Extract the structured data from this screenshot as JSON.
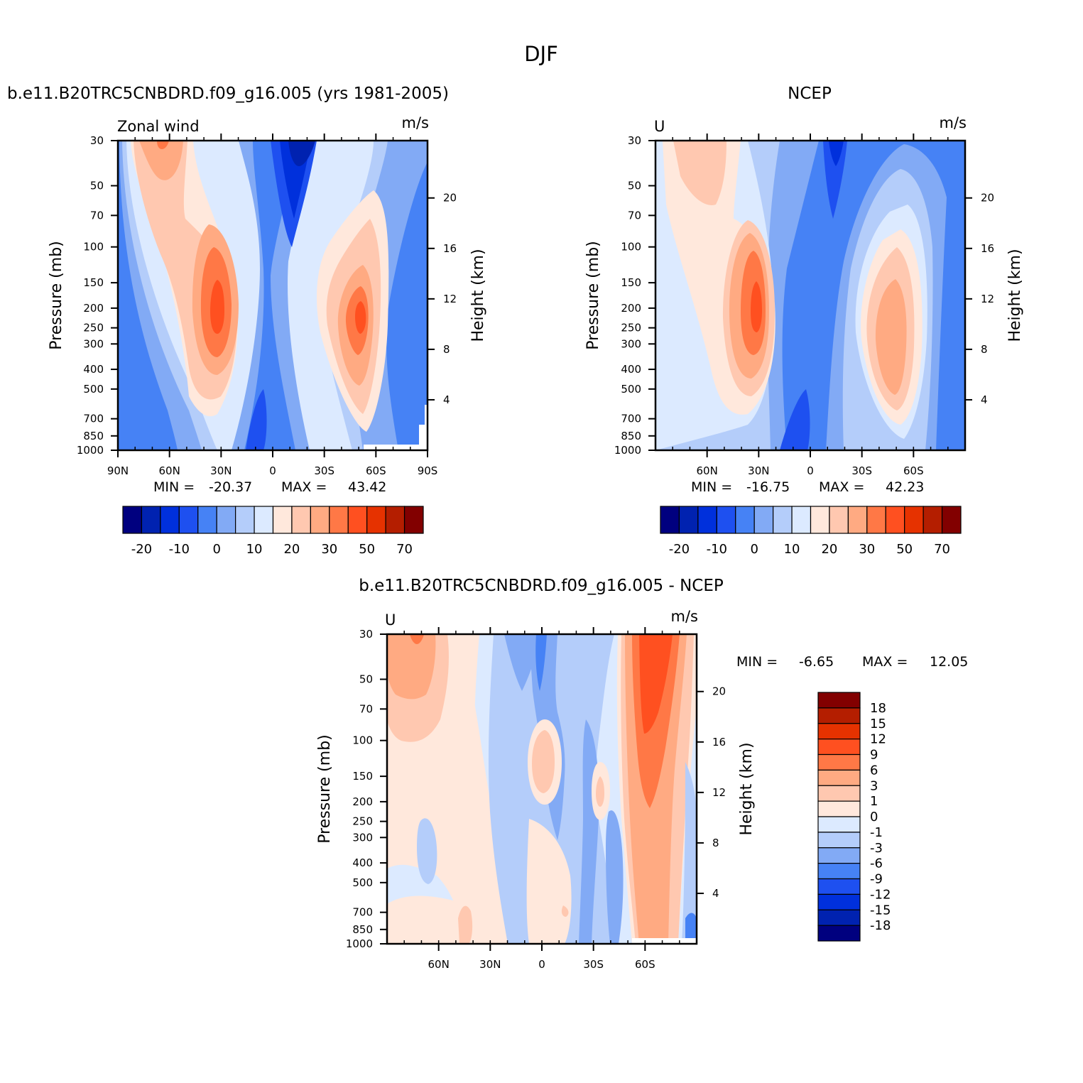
{
  "figure": {
    "title": "DJF",
    "palette": [
      "#00007f",
      "#0022b0",
      "#0030dc",
      "#1e50f0",
      "#4682f5",
      "#82aaf5",
      "#b4cdfa",
      "#dceaff",
      "#ffe8dc",
      "#ffc8b0",
      "#ffaa82",
      "#ff7846",
      "#ff5020",
      "#e63200",
      "#b41e00",
      "#820000"
    ]
  },
  "colors": {
    "land": "#ffffff",
    "frame": "#000000"
  },
  "chart_data": [
    {
      "type": "heatmap",
      "id": "model",
      "title": "b.e11.B20TRC5CNBDRD.f09_g16.005 (yrs 1981-2005)",
      "left_label": "Zonal wind",
      "units": "m/s",
      "xlabel": "",
      "ylabel": "Pressure (mb)",
      "ylabel_right": "Height (km)",
      "x_ticks": [
        "90N",
        "60N",
        "30N",
        "0",
        "30S",
        "60S",
        "90S"
      ],
      "y_ticks": [
        "30",
        "50",
        "70",
        "100",
        "150",
        "200",
        "250",
        "300",
        "400",
        "500",
        "700",
        "850",
        "1000"
      ],
      "height_ticks": [
        "20",
        "16",
        "12",
        "8",
        "4"
      ],
      "min_label": "MIN =",
      "min_value": "-20.37",
      "max_label": "MAX =",
      "max_value": "43.42",
      "colorbar_labels": [
        "-20",
        "-10",
        "0",
        "10",
        "20",
        "30",
        "50",
        "70"
      ]
    },
    {
      "type": "heatmap",
      "id": "ncep",
      "title": "NCEP",
      "left_label": "U",
      "units": "m/s",
      "xlabel": "",
      "ylabel": "Pressure (mb)",
      "ylabel_right": "Height (km)",
      "x_ticks": [
        "60N",
        "30N",
        "0",
        "30S",
        "60S"
      ],
      "y_ticks": [
        "30",
        "50",
        "70",
        "100",
        "150",
        "200",
        "250",
        "300",
        "400",
        "500",
        "700",
        "850",
        "1000"
      ],
      "height_ticks": [
        "20",
        "16",
        "12",
        "8",
        "4"
      ],
      "min_label": "MIN =",
      "min_value": "-16.75",
      "max_label": "MAX =",
      "max_value": "42.23",
      "colorbar_labels": [
        "-20",
        "-10",
        "0",
        "10",
        "20",
        "30",
        "50",
        "70"
      ]
    },
    {
      "type": "heatmap",
      "id": "diff",
      "title": "b.e11.B20TRC5CNBDRD.f09_g16.005 - NCEP",
      "left_label": "U",
      "units": "m/s",
      "xlabel": "",
      "ylabel": "Pressure (mb)",
      "ylabel_right": "Height (km)",
      "x_ticks": [
        "60N",
        "30N",
        "0",
        "30S",
        "60S"
      ],
      "y_ticks": [
        "30",
        "50",
        "70",
        "100",
        "150",
        "200",
        "250",
        "300",
        "400",
        "500",
        "700",
        "850",
        "1000"
      ],
      "height_ticks": [
        "20",
        "16",
        "12",
        "8",
        "4"
      ],
      "min_label": "MIN =",
      "min_value": "-6.65",
      "max_label": "MAX =",
      "max_value": "12.05",
      "colorbar_labels": [
        "18",
        "15",
        "12",
        "9",
        "6",
        "3",
        "1",
        "0",
        "-1",
        "-3",
        "-6",
        "-9",
        "-12",
        "-15",
        "-18"
      ]
    }
  ]
}
